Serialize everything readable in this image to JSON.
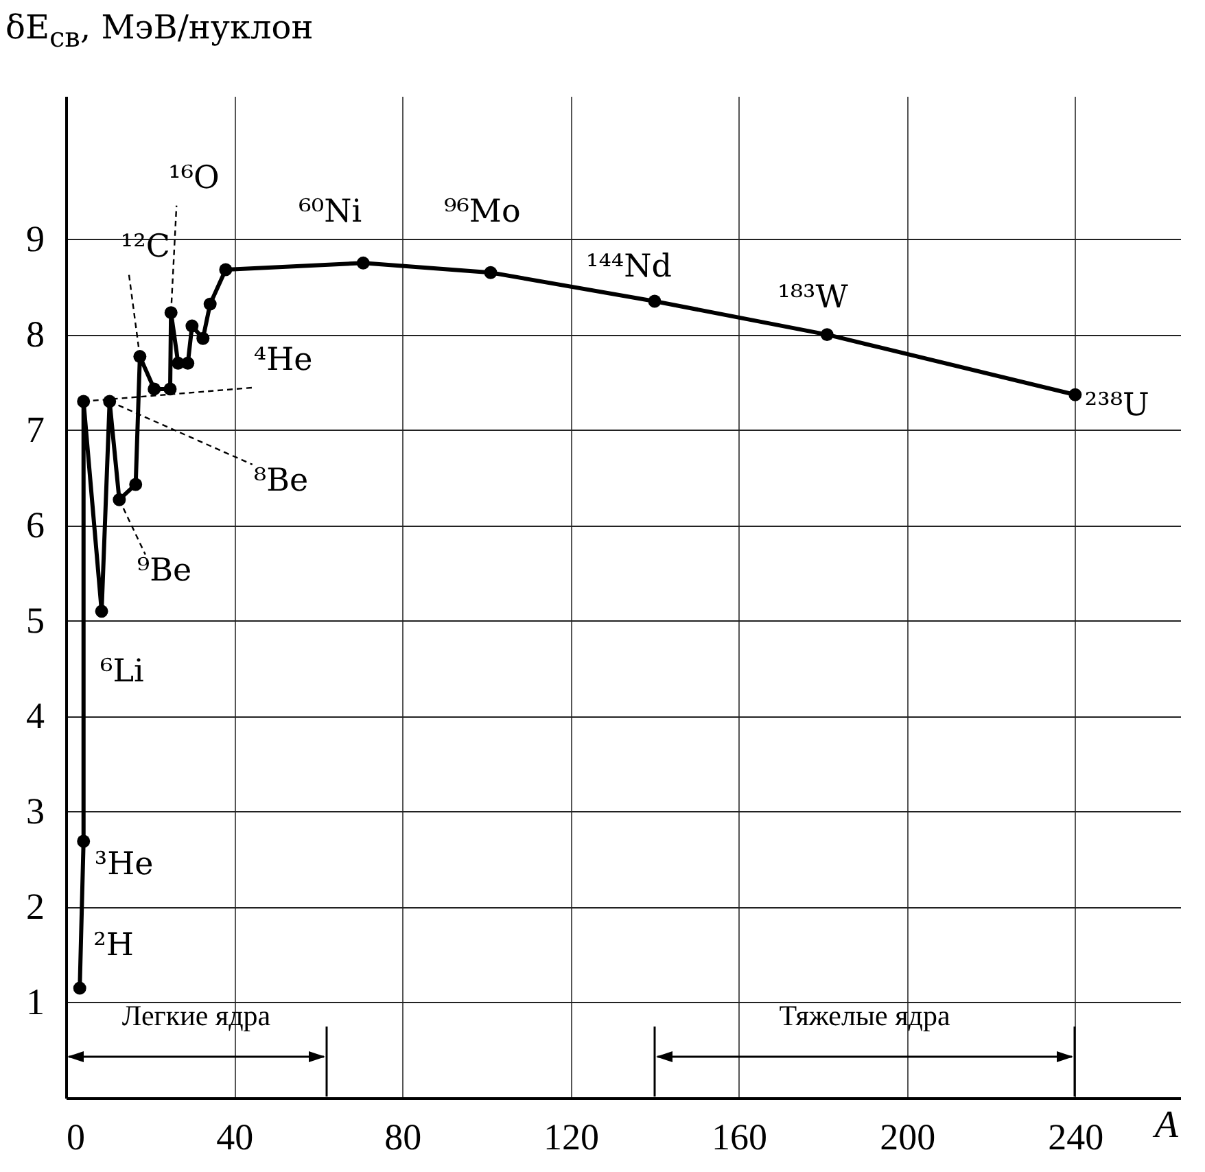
{
  "chart_data": {
    "type": "line",
    "xlabel": "A",
    "ylabel": "δE$_{св}$, МэВ/нуклон",
    "xlim": [
      0,
      265
    ],
    "ylim": [
      0,
      10.5
    ],
    "xticks": [
      0,
      40,
      80,
      120,
      160,
      200,
      240
    ],
    "yticks": [
      1,
      2,
      3,
      4,
      5,
      6,
      7,
      8,
      9
    ],
    "grid": true,
    "marker": "circle",
    "line_style": "solid",
    "series": [
      {
        "color": "#000000",
        "x": [
          3.3,
          4.2,
          4.2,
          8.5,
          10.4,
          12.7,
          16.6,
          17.6,
          21,
          24.8,
          25,
          26.7,
          29,
          30,
          32.6,
          34.3,
          38,
          70.7,
          101,
          140,
          181,
          240
        ],
        "values": [
          1.15,
          2.69,
          7.3,
          5.1,
          7.3,
          6.27,
          6.43,
          7.77,
          7.43,
          7.43,
          8.23,
          7.7,
          7.7,
          8.09,
          7.96,
          8.32,
          8.68,
          8.75,
          8.65,
          8.35,
          8.0,
          7.37
        ]
      }
    ],
    "annotations": [
      {
        "text": "²H",
        "x": 3.3,
        "y": 1.15
      },
      {
        "text": "³He",
        "x": 4.2,
        "y": 2.69
      },
      {
        "text": "⁴He",
        "x": 4.2,
        "y": 7.3
      },
      {
        "text": "⁶Li",
        "x": 8.5,
        "y": 5.1
      },
      {
        "text": "⁸Be",
        "x": 10.4,
        "y": 7.3
      },
      {
        "text": "⁹Be",
        "x": 12.7,
        "y": 6.27
      },
      {
        "text": "¹²C",
        "x": 17.6,
        "y": 7.77
      },
      {
        "text": "¹⁶O",
        "x": 25,
        "y": 8.23
      },
      {
        "text": "⁶⁰Ni",
        "x": 70.7,
        "y": 8.75
      },
      {
        "text": "⁹⁶Mo",
        "x": 101,
        "y": 8.65
      },
      {
        "text": "¹⁴⁴Nd",
        "x": 140,
        "y": 8.35
      },
      {
        "text": "¹⁸³W",
        "x": 181,
        "y": 8.0
      },
      {
        "text": "²³⁸U",
        "x": 240,
        "y": 7.37
      },
      "Легкие ядра",
      "Тяжелые ядра"
    ]
  }
}
